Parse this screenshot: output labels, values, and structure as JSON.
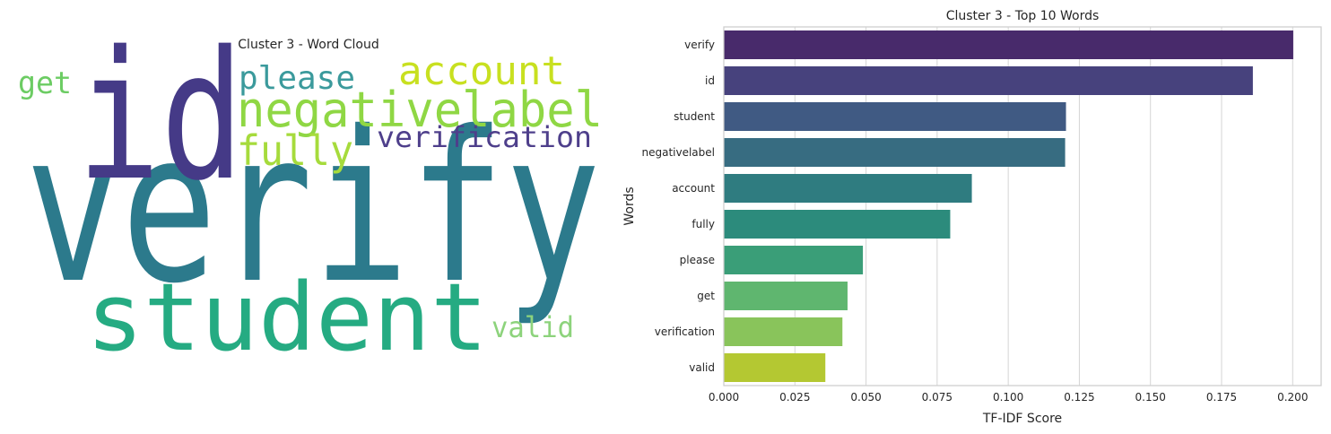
{
  "word_cloud": {
    "title": "Cluster 3 - Word Cloud",
    "words": [
      {
        "text": "verify",
        "weight": 0.2,
        "color": "#2c7a8c"
      },
      {
        "text": "id",
        "weight": 0.186,
        "color": "#453a87"
      },
      {
        "text": "student",
        "weight": 0.12,
        "color": "#25ab82"
      },
      {
        "text": "negativelabel",
        "weight": 0.12,
        "color": "#8fd744"
      },
      {
        "text": "account",
        "weight": 0.087,
        "color": "#c8e020"
      },
      {
        "text": "fully",
        "weight": 0.08,
        "color": "#a6db3c"
      },
      {
        "text": "please",
        "weight": 0.049,
        "color": "#3b9a9c"
      },
      {
        "text": "get",
        "weight": 0.044,
        "color": "#6ccc63"
      },
      {
        "text": "verification",
        "weight": 0.042,
        "color": "#4e3f8b"
      },
      {
        "text": "valid",
        "weight": 0.036,
        "color": "#8dd37c"
      }
    ]
  },
  "chart_data": {
    "type": "bar",
    "orientation": "horizontal",
    "title": "Cluster 3 - Top 10 Words",
    "xlabel": "TF-IDF Score",
    "ylabel": "Words",
    "categories": [
      "verify",
      "id",
      "student",
      "negativelabel",
      "account",
      "fully",
      "please",
      "get",
      "verification",
      "valid"
    ],
    "values": [
      0.2002,
      0.186,
      0.1203,
      0.12,
      0.0872,
      0.0796,
      0.0489,
      0.0435,
      0.0417,
      0.0357
    ],
    "colors": [
      "#482a6b",
      "#47427d",
      "#405a83",
      "#376c81",
      "#2f7c80",
      "#2c8b7c",
      "#3a9e78",
      "#5fb66f",
      "#89c45b",
      "#b4c832"
    ],
    "xlim": [
      0,
      0.21
    ],
    "xticks": [
      0.0,
      0.025,
      0.05,
      0.075,
      0.1,
      0.125,
      0.15,
      0.175,
      0.2
    ],
    "xtick_labels": [
      "0.000",
      "0.025",
      "0.050",
      "0.075",
      "0.100",
      "0.125",
      "0.150",
      "0.175",
      "0.200"
    ],
    "grid": "x"
  }
}
